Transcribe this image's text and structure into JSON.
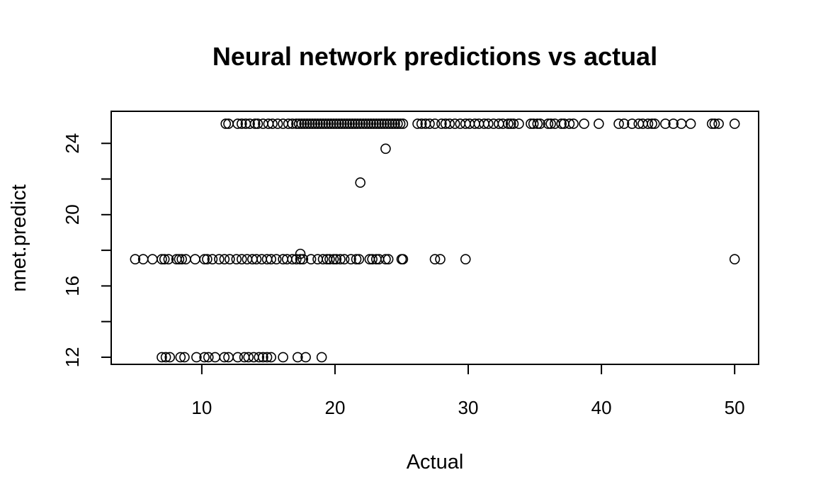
{
  "chart_data": {
    "type": "scatter",
    "title": "Neural network predictions vs actual",
    "xlabel": "Actual",
    "ylabel": "nnet.predict",
    "xlim": [
      3.2,
      51.8
    ],
    "ylim": [
      11.6,
      25.8
    ],
    "xticks": [
      10,
      20,
      30,
      40,
      50
    ],
    "yticks": [
      12,
      16,
      20,
      24
    ],
    "yticks_minor": [
      12,
      14,
      16,
      18,
      20,
      22,
      24
    ],
    "grid": false,
    "legend": "none",
    "series": [
      {
        "values": [
          [
            11.8,
            25.1
          ],
          [
            12.0,
            25.1
          ],
          [
            12.7,
            25.1
          ],
          [
            13.0,
            25.1
          ],
          [
            13.3,
            25.1
          ],
          [
            13.6,
            25.1
          ],
          [
            14.0,
            25.1
          ],
          [
            14.2,
            25.1
          ],
          [
            14.6,
            25.1
          ],
          [
            15.0,
            25.1
          ],
          [
            15.3,
            25.1
          ],
          [
            15.7,
            25.1
          ],
          [
            16.1,
            25.1
          ],
          [
            16.5,
            25.1
          ],
          [
            16.8,
            25.1
          ],
          [
            17.1,
            25.1
          ],
          [
            17.3,
            25.1
          ],
          [
            17.5,
            25.1
          ],
          [
            17.7,
            25.1
          ],
          [
            17.9,
            25.1
          ],
          [
            18.1,
            25.1
          ],
          [
            18.3,
            25.1
          ],
          [
            18.5,
            25.1
          ],
          [
            18.7,
            25.1
          ],
          [
            18.9,
            25.1
          ],
          [
            19.1,
            25.1
          ],
          [
            19.3,
            25.1
          ],
          [
            19.5,
            25.1
          ],
          [
            19.7,
            25.1
          ],
          [
            19.9,
            25.1
          ],
          [
            20.1,
            25.1
          ],
          [
            20.3,
            25.1
          ],
          [
            20.5,
            25.1
          ],
          [
            20.7,
            25.1
          ],
          [
            20.9,
            25.1
          ],
          [
            21.1,
            25.1
          ],
          [
            21.3,
            25.1
          ],
          [
            21.5,
            25.1
          ],
          [
            21.7,
            25.1
          ],
          [
            21.9,
            25.1
          ],
          [
            22.1,
            25.1
          ],
          [
            22.3,
            25.1
          ],
          [
            22.5,
            25.1
          ],
          [
            22.7,
            25.1
          ],
          [
            22.9,
            25.1
          ],
          [
            23.1,
            25.1
          ],
          [
            23.3,
            25.1
          ],
          [
            23.5,
            25.1
          ],
          [
            23.7,
            25.1
          ],
          [
            23.9,
            25.1
          ],
          [
            24.1,
            25.1
          ],
          [
            24.3,
            25.1
          ],
          [
            24.5,
            25.1
          ],
          [
            24.7,
            25.1
          ],
          [
            24.9,
            25.1
          ],
          [
            25.1,
            25.1
          ],
          [
            26.2,
            25.1
          ],
          [
            26.5,
            25.1
          ],
          [
            26.8,
            25.1
          ],
          [
            27.1,
            25.1
          ],
          [
            27.5,
            25.1
          ],
          [
            28.0,
            25.1
          ],
          [
            28.3,
            25.1
          ],
          [
            28.6,
            25.1
          ],
          [
            29.0,
            25.1
          ],
          [
            29.4,
            25.1
          ],
          [
            29.8,
            25.1
          ],
          [
            30.1,
            25.1
          ],
          [
            30.5,
            25.1
          ],
          [
            30.8,
            25.1
          ],
          [
            31.2,
            25.1
          ],
          [
            31.5,
            25.1
          ],
          [
            31.9,
            25.1
          ],
          [
            32.3,
            25.1
          ],
          [
            32.6,
            25.1
          ],
          [
            33.0,
            25.1
          ],
          [
            33.2,
            25.1
          ],
          [
            33.4,
            25.1
          ],
          [
            33.8,
            25.1
          ],
          [
            34.7,
            25.1
          ],
          [
            34.9,
            25.1
          ],
          [
            35.2,
            25.1
          ],
          [
            35.4,
            25.1
          ],
          [
            36.0,
            25.1
          ],
          [
            36.2,
            25.1
          ],
          [
            36.5,
            25.1
          ],
          [
            37.0,
            25.1
          ],
          [
            37.2,
            25.1
          ],
          [
            37.6,
            25.1
          ],
          [
            37.9,
            25.1
          ],
          [
            38.7,
            25.1
          ],
          [
            39.8,
            25.1
          ],
          [
            41.3,
            25.1
          ],
          [
            41.7,
            25.1
          ],
          [
            42.3,
            25.1
          ],
          [
            42.8,
            25.1
          ],
          [
            43.1,
            25.1
          ],
          [
            43.5,
            25.1
          ],
          [
            43.8,
            25.1
          ],
          [
            44.0,
            25.1
          ],
          [
            44.8,
            25.1
          ],
          [
            45.4,
            25.1
          ],
          [
            46.0,
            25.1
          ],
          [
            46.7,
            25.1
          ],
          [
            48.3,
            25.1
          ],
          [
            48.5,
            25.1
          ],
          [
            48.8,
            25.1
          ],
          [
            50.0,
            25.1
          ],
          [
            23.8,
            23.7
          ],
          [
            21.9,
            21.8
          ],
          [
            5.0,
            17.5
          ],
          [
            5.6,
            17.5
          ],
          [
            6.3,
            17.5
          ],
          [
            7.0,
            17.5
          ],
          [
            7.2,
            17.5
          ],
          [
            7.5,
            17.5
          ],
          [
            8.1,
            17.5
          ],
          [
            8.3,
            17.5
          ],
          [
            8.5,
            17.5
          ],
          [
            8.8,
            17.5
          ],
          [
            9.5,
            17.5
          ],
          [
            10.2,
            17.5
          ],
          [
            10.4,
            17.5
          ],
          [
            10.8,
            17.5
          ],
          [
            11.3,
            17.5
          ],
          [
            11.7,
            17.5
          ],
          [
            12.1,
            17.5
          ],
          [
            12.6,
            17.5
          ],
          [
            13.0,
            17.5
          ],
          [
            13.4,
            17.5
          ],
          [
            13.8,
            17.5
          ],
          [
            14.1,
            17.5
          ],
          [
            14.5,
            17.5
          ],
          [
            14.9,
            17.5
          ],
          [
            15.2,
            17.5
          ],
          [
            15.6,
            17.5
          ],
          [
            16.1,
            17.5
          ],
          [
            16.4,
            17.5
          ],
          [
            16.8,
            17.5
          ],
          [
            17.1,
            17.5
          ],
          [
            17.4,
            17.5
          ],
          [
            17.6,
            17.5
          ],
          [
            18.2,
            17.5
          ],
          [
            18.7,
            17.5
          ],
          [
            19.1,
            17.5
          ],
          [
            19.4,
            17.5
          ],
          [
            19.6,
            17.5
          ],
          [
            19.9,
            17.5
          ],
          [
            20.1,
            17.5
          ],
          [
            20.4,
            17.5
          ],
          [
            20.7,
            17.5
          ],
          [
            21.2,
            17.5
          ],
          [
            21.6,
            17.5
          ],
          [
            21.8,
            17.5
          ],
          [
            22.6,
            17.5
          ],
          [
            22.8,
            17.5
          ],
          [
            23.1,
            17.5
          ],
          [
            23.3,
            17.5
          ],
          [
            23.8,
            17.5
          ],
          [
            24.0,
            17.5
          ],
          [
            25.0,
            17.5
          ],
          [
            25.1,
            17.5
          ],
          [
            27.5,
            17.5
          ],
          [
            27.9,
            17.5
          ],
          [
            29.8,
            17.5
          ],
          [
            50.0,
            17.5
          ],
          [
            17.4,
            17.8
          ],
          [
            7.0,
            12.0
          ],
          [
            7.3,
            12.0
          ],
          [
            7.6,
            12.0
          ],
          [
            8.4,
            12.0
          ],
          [
            8.7,
            12.0
          ],
          [
            9.6,
            12.0
          ],
          [
            10.2,
            12.0
          ],
          [
            10.5,
            12.0
          ],
          [
            11.0,
            12.0
          ],
          [
            11.7,
            12.0
          ],
          [
            12.0,
            12.0
          ],
          [
            12.7,
            12.0
          ],
          [
            13.2,
            12.0
          ],
          [
            13.5,
            12.0
          ],
          [
            13.9,
            12.0
          ],
          [
            14.3,
            12.0
          ],
          [
            14.6,
            12.0
          ],
          [
            14.9,
            12.0
          ],
          [
            15.2,
            12.0
          ],
          [
            16.1,
            12.0
          ],
          [
            17.2,
            12.0
          ],
          [
            17.8,
            12.0
          ],
          [
            19.0,
            12.0
          ]
        ]
      }
    ]
  }
}
